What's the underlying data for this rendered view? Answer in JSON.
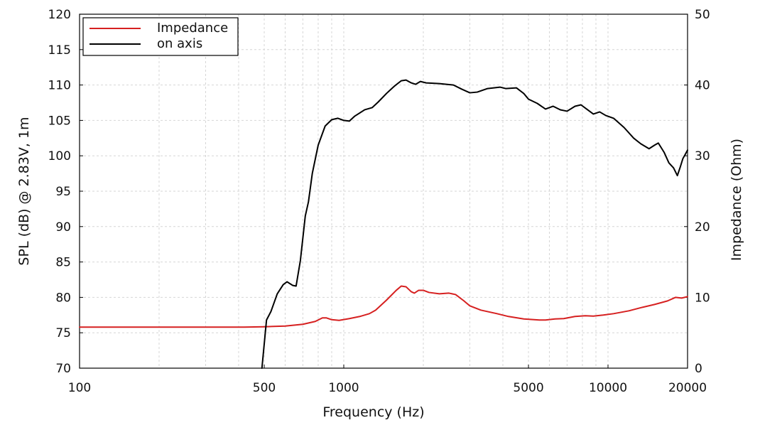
{
  "chart_data": {
    "type": "line",
    "xlabel": "Frequency (Hz)",
    "ylabel": "SPL (dB) @ 2.83V, 1m",
    "y2label": "Impedance (Ohm)",
    "xscale": "log",
    "xlim": [
      100,
      20000
    ],
    "ylim": [
      70,
      120
    ],
    "y2lim": [
      0,
      50
    ],
    "grid": true,
    "legend_position": "top-left",
    "x_ticks": [
      100,
      500,
      1000,
      5000,
      10000,
      20000
    ],
    "x_tick_labels": [
      "100",
      "500",
      "1000",
      "5000",
      "10000",
      "20000"
    ],
    "y_ticks": [
      70,
      75,
      80,
      85,
      90,
      95,
      100,
      105,
      110,
      115,
      120
    ],
    "y_tick_labels": [
      "70",
      "75",
      "80",
      "85",
      "90",
      "95",
      "100",
      "105",
      "110",
      "115",
      "120"
    ],
    "y2_ticks": [
      0,
      10,
      20,
      30,
      40,
      50
    ],
    "y2_tick_labels": [
      "0",
      "10",
      "20",
      "30",
      "40",
      "50"
    ],
    "series": [
      {
        "name": "Impedance",
        "color": "#d62020",
        "axis": "right",
        "points": [
          [
            100,
            5.8
          ],
          [
            200,
            5.8
          ],
          [
            300,
            5.8
          ],
          [
            420,
            5.8
          ],
          [
            500,
            5.85
          ],
          [
            600,
            5.95
          ],
          [
            700,
            6.2
          ],
          [
            780,
            6.6
          ],
          [
            830,
            7.1
          ],
          [
            860,
            7.1
          ],
          [
            900,
            6.85
          ],
          [
            960,
            6.75
          ],
          [
            1050,
            7.0
          ],
          [
            1150,
            7.3
          ],
          [
            1250,
            7.7
          ],
          [
            1320,
            8.2
          ],
          [
            1450,
            9.6
          ],
          [
            1580,
            11.0
          ],
          [
            1650,
            11.6
          ],
          [
            1720,
            11.5
          ],
          [
            1800,
            10.8
          ],
          [
            1850,
            10.6
          ],
          [
            1920,
            11.0
          ],
          [
            2000,
            11.0
          ],
          [
            2100,
            10.7
          ],
          [
            2300,
            10.5
          ],
          [
            2500,
            10.6
          ],
          [
            2650,
            10.4
          ],
          [
            2850,
            9.5
          ],
          [
            3000,
            8.8
          ],
          [
            3300,
            8.2
          ],
          [
            3800,
            7.7
          ],
          [
            4200,
            7.3
          ],
          [
            4800,
            6.95
          ],
          [
            5500,
            6.8
          ],
          [
            5800,
            6.8
          ],
          [
            6300,
            6.95
          ],
          [
            6800,
            7.0
          ],
          [
            7500,
            7.3
          ],
          [
            8200,
            7.4
          ],
          [
            8800,
            7.35
          ],
          [
            9600,
            7.5
          ],
          [
            10500,
            7.7
          ],
          [
            12000,
            8.1
          ],
          [
            13500,
            8.6
          ],
          [
            15000,
            9.0
          ],
          [
            16800,
            9.5
          ],
          [
            18000,
            10.0
          ],
          [
            19000,
            9.9
          ],
          [
            20000,
            10.1
          ]
        ]
      },
      {
        "name": "on axis",
        "color": "#000000",
        "axis": "left",
        "points": [
          [
            490,
            70.0
          ],
          [
            510,
            76.8
          ],
          [
            530,
            78.0
          ],
          [
            560,
            80.5
          ],
          [
            590,
            81.8
          ],
          [
            610,
            82.2
          ],
          [
            640,
            81.7
          ],
          [
            660,
            81.6
          ],
          [
            685,
            85.2
          ],
          [
            715,
            91.5
          ],
          [
            735,
            93.5
          ],
          [
            760,
            97.5
          ],
          [
            800,
            101.5
          ],
          [
            850,
            104.2
          ],
          [
            900,
            105.1
          ],
          [
            950,
            105.3
          ],
          [
            1000,
            105.0
          ],
          [
            1050,
            104.9
          ],
          [
            1100,
            105.6
          ],
          [
            1200,
            106.5
          ],
          [
            1280,
            106.8
          ],
          [
            1350,
            107.6
          ],
          [
            1450,
            108.8
          ],
          [
            1550,
            109.8
          ],
          [
            1650,
            110.6
          ],
          [
            1720,
            110.7
          ],
          [
            1800,
            110.3
          ],
          [
            1870,
            110.1
          ],
          [
            1950,
            110.5
          ],
          [
            2050,
            110.3
          ],
          [
            2300,
            110.2
          ],
          [
            2600,
            110.0
          ],
          [
            2800,
            109.4
          ],
          [
            3000,
            108.9
          ],
          [
            3200,
            109.0
          ],
          [
            3500,
            109.5
          ],
          [
            3900,
            109.7
          ],
          [
            4100,
            109.5
          ],
          [
            4500,
            109.6
          ],
          [
            4800,
            108.8
          ],
          [
            5000,
            108.0
          ],
          [
            5400,
            107.4
          ],
          [
            5800,
            106.6
          ],
          [
            6200,
            107.0
          ],
          [
            6600,
            106.5
          ],
          [
            7000,
            106.3
          ],
          [
            7500,
            107.0
          ],
          [
            7900,
            107.2
          ],
          [
            8300,
            106.6
          ],
          [
            8800,
            105.9
          ],
          [
            9300,
            106.2
          ],
          [
            9800,
            105.7
          ],
          [
            10500,
            105.3
          ],
          [
            11500,
            104.0
          ],
          [
            12500,
            102.5
          ],
          [
            13300,
            101.7
          ],
          [
            14300,
            101.0
          ],
          [
            15000,
            101.5
          ],
          [
            15500,
            101.8
          ],
          [
            16300,
            100.5
          ],
          [
            17000,
            99.0
          ],
          [
            17700,
            98.3
          ],
          [
            18300,
            97.2
          ],
          [
            18800,
            98.5
          ],
          [
            19200,
            99.6
          ],
          [
            19600,
            100.2
          ],
          [
            20000,
            100.8
          ]
        ]
      }
    ]
  }
}
